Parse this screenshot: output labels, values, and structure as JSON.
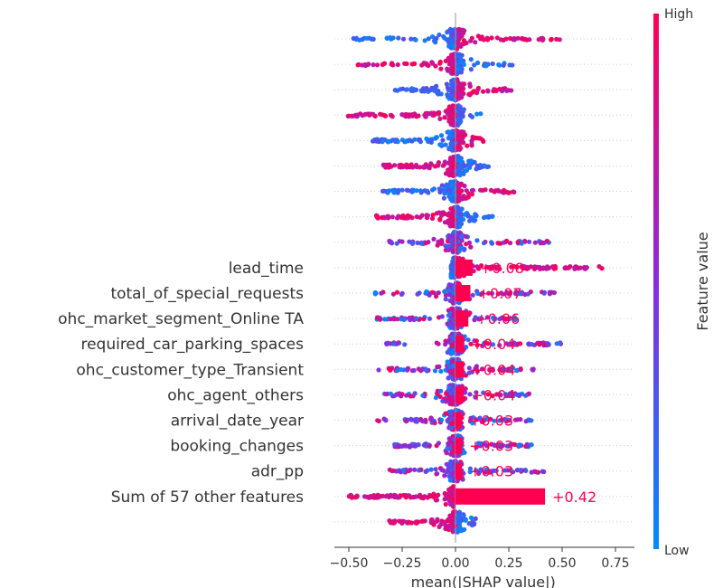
{
  "chart_data": {
    "type": "bar",
    "xlabel": "mean(|SHAP value|)",
    "xlim": [
      -0.58,
      0.85
    ],
    "xticks": [
      -0.5,
      -0.25,
      0.0,
      0.25,
      0.5,
      0.75
    ],
    "xtick_labels": [
      "−0.50",
      "−0.25",
      "0.00",
      "0.25",
      "0.50",
      "0.75"
    ],
    "bars": [
      {
        "feature": "lead_time",
        "value": 0.08,
        "label": "+0.08"
      },
      {
        "feature": "total_of_special_requests",
        "value": 0.07,
        "label": "+0.07"
      },
      {
        "feature": "ohc_market_segment_Online TA",
        "value": 0.06,
        "label": "+0.06"
      },
      {
        "feature": "required_car_parking_spaces",
        "value": 0.04,
        "label": "+0.04"
      },
      {
        "feature": "ohc_customer_type_Transient",
        "value": 0.04,
        "label": "+0.04"
      },
      {
        "feature": "ohc_agent_others",
        "value": 0.04,
        "label": "+0.04"
      },
      {
        "feature": "arrival_date_year",
        "value": 0.03,
        "label": "+0.03"
      },
      {
        "feature": "booking_changes",
        "value": 0.03,
        "label": "+0.03"
      },
      {
        "feature": "adr_pp",
        "value": 0.03,
        "label": "+0.03"
      },
      {
        "feature": "Sum of 57 other features",
        "value": 0.42,
        "label": "+0.42"
      }
    ],
    "beeswarm_rows": [
      {
        "min": -0.49,
        "max": 0.49,
        "lowSide": "left"
      },
      {
        "min": -0.47,
        "max": 0.27,
        "lowSide": "right"
      },
      {
        "min": -0.29,
        "max": 0.27,
        "lowSide": "left"
      },
      {
        "min": -0.52,
        "max": 0.12,
        "lowSide": "right"
      },
      {
        "min": -0.39,
        "max": 0.15,
        "lowSide": "left"
      },
      {
        "min": -0.34,
        "max": 0.17,
        "lowSide": "right"
      },
      {
        "min": -0.36,
        "max": 0.28,
        "lowSide": "left"
      },
      {
        "min": -0.38,
        "max": 0.18,
        "lowSide": "right"
      },
      {
        "min": -0.31,
        "max": 0.44,
        "lowSide": "mix"
      },
      {
        "min": -0.02,
        "max": 0.71,
        "lowSide": "left"
      },
      {
        "min": -0.38,
        "max": 0.47,
        "lowSide": "mix"
      },
      {
        "min": -0.37,
        "max": 0.32,
        "lowSide": "mix"
      },
      {
        "min": -0.33,
        "max": 0.5,
        "lowSide": "mix"
      },
      {
        "min": -0.37,
        "max": 0.37,
        "lowSide": "mix"
      },
      {
        "min": -0.34,
        "max": 0.35,
        "lowSide": "mix"
      },
      {
        "min": -0.37,
        "max": 0.37,
        "lowSide": "mix"
      },
      {
        "min": -0.31,
        "max": 0.37,
        "lowSide": "mix"
      },
      {
        "min": -0.32,
        "max": 0.42,
        "lowSide": "mix"
      },
      {
        "min": -0.5,
        "max": -0.01,
        "lowSide": "right"
      },
      {
        "min": -0.31,
        "max": 0.1,
        "lowSide": "right"
      }
    ],
    "colorbar": {
      "high_label": "High",
      "low_label": "Low",
      "label": "Feature value",
      "low_color": "#008bfb",
      "mid_color": "#8a2be2",
      "high_color": "#ff0051"
    },
    "grid": false
  }
}
